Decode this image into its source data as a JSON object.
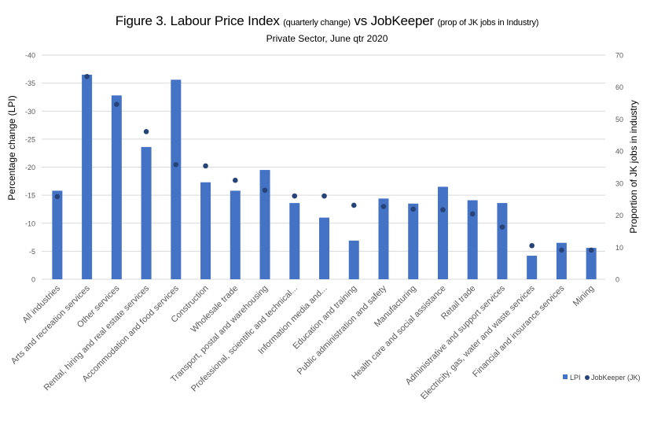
{
  "title": {
    "figure": "Figure 3.",
    "part1": "Labour Price Index",
    "part1_note": "(quarterly change)",
    "vs": "vs",
    "part2": "JobKeeper",
    "part2_note": "(prop of JK jobs in Industry)"
  },
  "subtitle": "Private Sector, June qtr 2020",
  "colors": {
    "bar": "#4472C4",
    "dot": "#264478",
    "grid": "#D9D9D9",
    "axis_text": "#595959"
  },
  "chart_data": {
    "type": "bar",
    "title": "Figure 3. Labour Price Index (quarterly change) vs JobKeeper (prop of JK jobs in Industry)",
    "subtitle": "Private Sector, June qtr 2020",
    "xlabel": "",
    "ylabel": "Percentage change (LPI)",
    "y2label": "Proportion of JK jobs in industry",
    "ylim": [
      0,
      -40
    ],
    "y2lim": [
      0,
      70
    ],
    "yticks": [
      0,
      -5,
      -10,
      -15,
      -20,
      -25,
      -30,
      -35,
      -40
    ],
    "y2ticks": [
      0,
      10,
      20,
      30,
      40,
      50,
      60,
      70
    ],
    "grid": true,
    "legend_position": "bottom-right",
    "categories": [
      "All industries",
      "Arts and recreation services",
      "Other services",
      "Rental, hiring and real estate services",
      "Accommodation and food services",
      "Construction",
      "Wholesale trade",
      "Transport, postal and warehousing",
      "Professional, scientific and technical...",
      "Information media and...",
      "Education and training",
      "Public administration and safety",
      "Manufacturing",
      "Health care and social assistance",
      "Retail trade",
      "Administrative and support services",
      "Electricity, gas, water and waste services",
      "Financial and insurance services",
      "Mining"
    ],
    "series": [
      {
        "name": "LPI",
        "type": "bar",
        "axis": "left",
        "values": [
          -15.8,
          -36.5,
          -32.8,
          -23.6,
          -35.6,
          -17.3,
          -15.8,
          -19.5,
          -13.6,
          -11.0,
          -6.9,
          -14.4,
          -13.5,
          -16.5,
          -14.1,
          -13.6,
          -4.2,
          -6.5,
          -5.6
        ]
      },
      {
        "name": "JobKeeper (JK)",
        "type": "scatter",
        "axis": "right",
        "values": [
          25.8,
          63.3,
          54.6,
          46.1,
          35.8,
          35.4,
          30.9,
          27.8,
          26.0,
          26.0,
          23.1,
          22.7,
          21.9,
          21.7,
          20.4,
          16.3,
          10.5,
          9.1,
          9.1
        ]
      }
    ]
  },
  "legend": {
    "items": [
      {
        "label": "LPI",
        "marker": "square"
      },
      {
        "label": "JobKeeper (JK)",
        "marker": "circle"
      }
    ]
  }
}
